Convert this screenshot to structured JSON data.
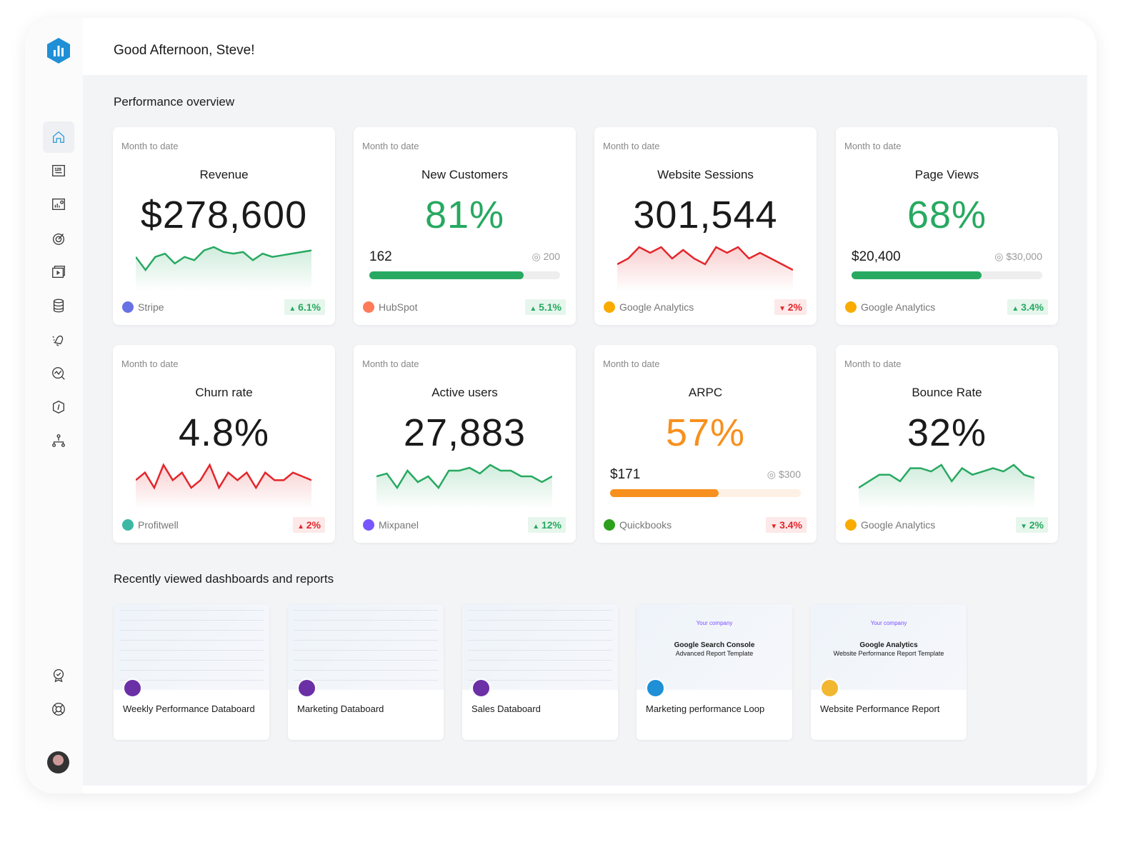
{
  "header": {
    "greeting": "Good Afternoon, Steve!"
  },
  "sidebar": {
    "items": [
      "home-icon",
      "numbers-icon",
      "dashboard-icon",
      "goals-icon",
      "presentation-icon",
      "data-icon",
      "alerts-icon",
      "analytics-icon",
      "benchmarks-icon",
      "hierarchy-icon",
      "badge-icon",
      "help-icon"
    ],
    "active": "home"
  },
  "performance": {
    "title": "Performance overview",
    "cards": [
      {
        "period": "Month to date",
        "title": "Revenue",
        "value": "$278,600",
        "color": "#1a1a1a",
        "spark": [
          6,
          2,
          6,
          7,
          4,
          6,
          5,
          8,
          9,
          7.5,
          7,
          7.5,
          5,
          7,
          6,
          6.5,
          7,
          7.5,
          8
        ],
        "trend": "up",
        "source": "Stripe",
        "source_color": "#6772e5",
        "change": "6.1%",
        "direction": "up"
      },
      {
        "period": "Month to date",
        "title": "New Customers",
        "value": "81%",
        "color": "#27a961",
        "progress": {
          "current": "162",
          "goal": "200",
          "fraction": 0.81,
          "color": "#27a961"
        },
        "source": "HubSpot",
        "source_color": "#ff7a59",
        "change": "5.1%",
        "direction": "up"
      },
      {
        "period": "Month to date",
        "title": "Website Sessions",
        "value": "301,544",
        "color": "#1a1a1a",
        "spark": [
          4,
          5,
          7,
          6,
          7,
          5,
          6.5,
          5,
          4,
          7,
          6,
          7,
          5,
          6,
          5,
          4,
          3
        ],
        "trend": "down",
        "source": "Google Analytics",
        "source_color": "#f9ab00",
        "change": "2%",
        "direction": "down"
      },
      {
        "period": "Month to date",
        "title": "Page Views",
        "value": "68%",
        "color": "#27a961",
        "progress": {
          "current": "$20,400",
          "goal": "$30,000",
          "fraction": 0.68,
          "color": "#27a961"
        },
        "source": "Google Analytics",
        "source_color": "#f9ab00",
        "change": "3.4%",
        "direction": "up"
      },
      {
        "period": "Month to date",
        "title": "Churn rate",
        "value": "4.8%",
        "color": "#1a1a1a",
        "spark": [
          5,
          6,
          4,
          7,
          5,
          6,
          4,
          5,
          7,
          4,
          6,
          5,
          6,
          4,
          6,
          5,
          5,
          6,
          5.5,
          5
        ],
        "trend": "down",
        "source": "Profitwell",
        "source_color": "#3cb8a5",
        "change": "2%",
        "direction": "up-bad"
      },
      {
        "period": "Month to date",
        "title": "Active users",
        "value": "27,883",
        "color": "#1a1a1a",
        "spark": [
          6,
          6.5,
          4,
          7,
          5,
          6,
          4,
          7,
          7,
          7.5,
          6.5,
          8,
          7,
          7,
          6,
          6,
          5,
          6
        ],
        "trend": "up",
        "source": "Mixpanel",
        "source_color": "#7856ff",
        "change": "12%",
        "direction": "up"
      },
      {
        "period": "Month to date",
        "title": "ARPC",
        "value": "57%",
        "color": "#f7901e",
        "progress": {
          "current": "$171",
          "goal": "$300",
          "fraction": 0.57,
          "color": "#f7901e"
        },
        "source": "Quickbooks",
        "source_color": "#2ca01c",
        "change": "3.4%",
        "direction": "down"
      },
      {
        "period": "Month to date",
        "title": "Bounce Rate",
        "value": "32%",
        "color": "#1a1a1a",
        "spark": [
          4,
          5,
          6,
          6,
          5,
          7,
          7,
          6.5,
          7.5,
          5,
          7,
          6,
          6.5,
          7,
          6.5,
          7.5,
          6,
          5.5
        ],
        "trend": "up",
        "source": "Google Analytics",
        "source_color": "#f9ab00",
        "change": "2%",
        "direction": "down-good"
      }
    ]
  },
  "recent": {
    "title": "Recently viewed dashboards and reports",
    "items": [
      {
        "name": "Weekly Performance Databoard",
        "icon_color": "#6b2fa6"
      },
      {
        "name": "Marketing Databoard",
        "icon_color": "#6b2fa6"
      },
      {
        "name": "Sales Databoard",
        "icon_color": "#6b2fa6"
      },
      {
        "name": "Marketing performance Loop",
        "icon_color": "#1f8fd6",
        "thumb_brand": "Your company",
        "thumb_title": "Google Search Console",
        "thumb_sub": "Advanced Report Template"
      },
      {
        "name": "Website Performance Report",
        "icon_color": "#f2b630",
        "thumb_brand": "Your company",
        "thumb_title": "Google Analytics",
        "thumb_sub": "Website Performance Report Template"
      }
    ]
  }
}
